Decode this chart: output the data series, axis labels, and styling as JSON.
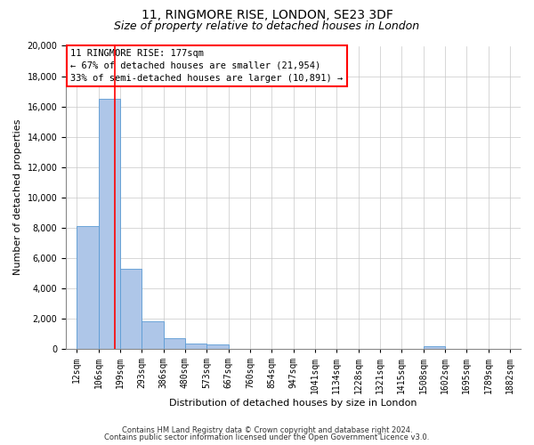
{
  "title": "11, RINGMORE RISE, LONDON, SE23 3DF",
  "subtitle": "Size of property relative to detached houses in London",
  "xlabel": "Distribution of detached houses by size in London",
  "ylabel": "Number of detached properties",
  "bin_labels": [
    "12sqm",
    "106sqm",
    "199sqm",
    "293sqm",
    "386sqm",
    "480sqm",
    "573sqm",
    "667sqm",
    "760sqm",
    "854sqm",
    "947sqm",
    "1041sqm",
    "1134sqm",
    "1228sqm",
    "1321sqm",
    "1415sqm",
    "1508sqm",
    "1602sqm",
    "1695sqm",
    "1789sqm",
    "1882sqm"
  ],
  "bar_heights": [
    8100,
    16500,
    5300,
    1800,
    700,
    350,
    300,
    0,
    0,
    0,
    0,
    0,
    0,
    0,
    0,
    0,
    170,
    0,
    0,
    0,
    0
  ],
  "bar_color": "#aec6e8",
  "bar_edge_color": "#5b9bd5",
  "vline_color": "red",
  "annotation_line1": "11 RINGMORE RISE: 177sqm",
  "annotation_line2": "← 67% of detached houses are smaller (21,954)",
  "annotation_line3": "33% of semi-detached houses are larger (10,891) →",
  "ylim": [
    0,
    20000
  ],
  "yticks": [
    0,
    2000,
    4000,
    6000,
    8000,
    10000,
    12000,
    14000,
    16000,
    18000,
    20000
  ],
  "footer_line1": "Contains HM Land Registry data © Crown copyright and database right 2024.",
  "footer_line2": "Contains public sector information licensed under the Open Government Licence v3.0.",
  "background_color": "#ffffff",
  "grid_color": "#c8c8c8",
  "title_fontsize": 10,
  "subtitle_fontsize": 9,
  "axis_label_fontsize": 8,
  "tick_fontsize": 7,
  "annotation_fontsize": 7.5,
  "footer_fontsize": 6
}
